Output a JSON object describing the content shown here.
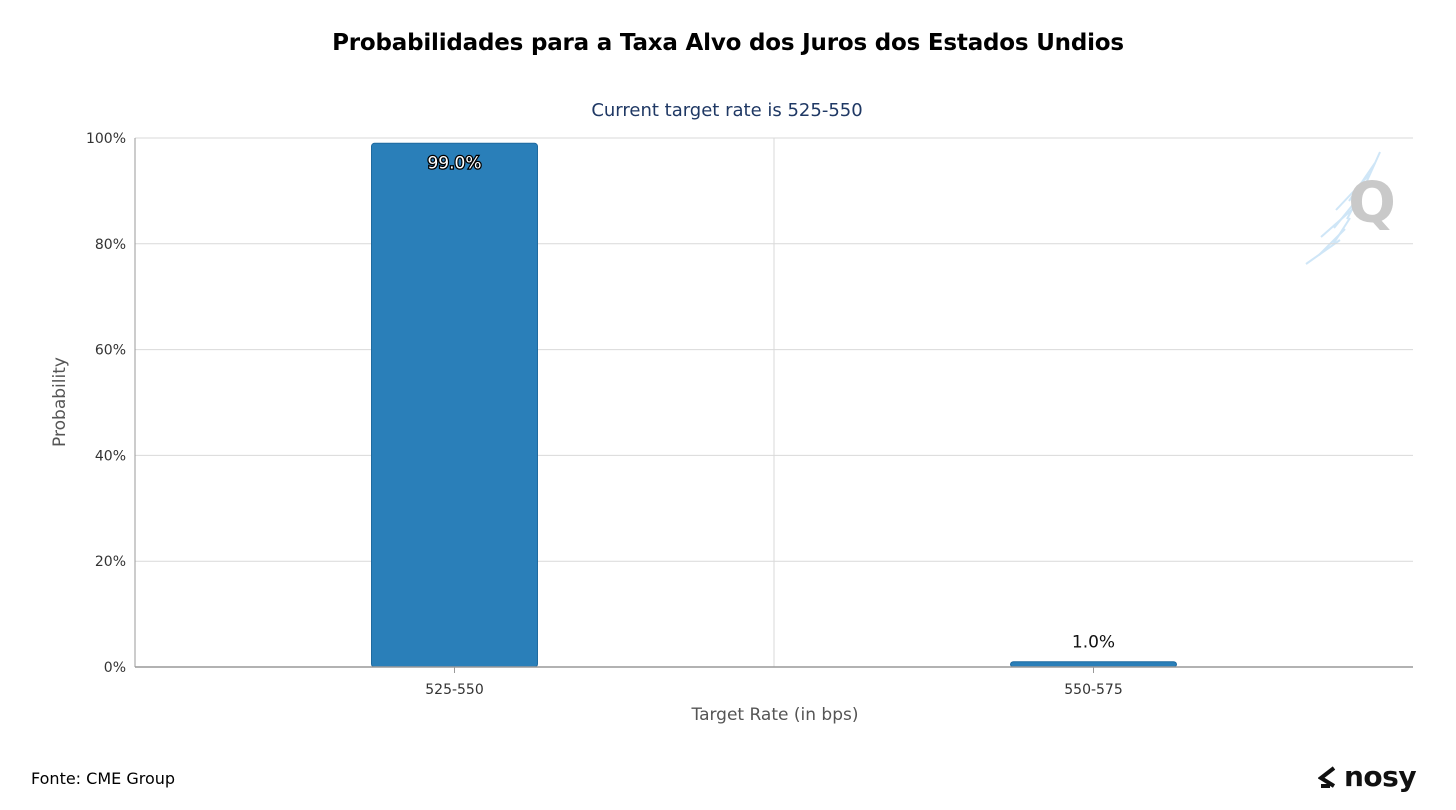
{
  "page": {
    "title": "Probabilidades para a Taxa Alvo dos Juros dos Estados Undios",
    "source": "Fonte: CME Group",
    "brand": "nosy",
    "watermark": "Q"
  },
  "colors": {
    "bar": "#2a7fb9",
    "bar_border": "#1f6a9f",
    "grid": "#d9d9d9",
    "axis": "#999999",
    "subtitle": "#1f3864",
    "tick": "#333333",
    "axis_label": "#555555"
  },
  "chart_data": {
    "type": "bar",
    "subtitle": "Current target rate is 525-550",
    "categories": [
      "525-550",
      "550-575"
    ],
    "values": [
      99.0,
      1.0
    ],
    "data_labels": [
      "99.0%",
      "1.0%"
    ],
    "xlabel": "Target Rate (in bps)",
    "ylabel": "Probability",
    "ylim": [
      0,
      100
    ],
    "yticks": [
      0,
      20,
      40,
      60,
      80,
      100
    ],
    "ytick_labels": [
      "0%",
      "20%",
      "40%",
      "60%",
      "80%",
      "100%"
    ],
    "grid": true,
    "legend": "none"
  }
}
